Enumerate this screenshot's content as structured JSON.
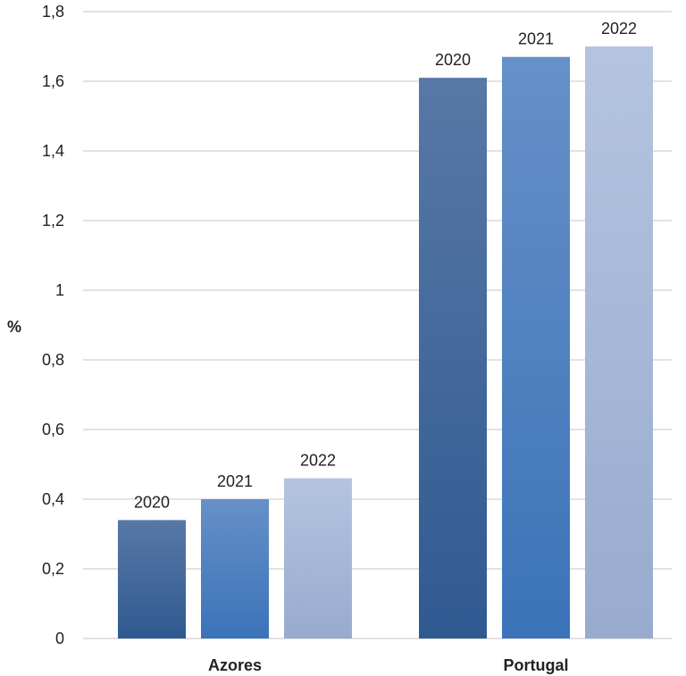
{
  "chart_data": {
    "type": "bar",
    "categories": [
      "Azores",
      "Portugal"
    ],
    "series": [
      {
        "label": "2020",
        "values": [
          0.34,
          1.61
        ]
      },
      {
        "label": "2021",
        "values": [
          0.4,
          1.67
        ]
      },
      {
        "label": "2022",
        "values": [
          0.46,
          1.7
        ]
      }
    ],
    "ylabel": "%",
    "ylim": [
      0,
      1.8
    ],
    "yticks": [
      0,
      0.2,
      0.4,
      0.6,
      0.8,
      1.0,
      1.2,
      1.4,
      1.6,
      1.8
    ],
    "ytick_labels": [
      "0",
      "0,2",
      "0,4",
      "0,6",
      "0,8",
      "1",
      "1,2",
      "1,4",
      "1,6",
      "1,8"
    ],
    "grid": true,
    "legend": "none",
    "colors": {
      "2020": [
        "#5878a6",
        "#2f5a91"
      ],
      "2021": [
        "#6690c8",
        "#3b73b8"
      ],
      "2022": [
        "#b4c4e0",
        "#98abce"
      ]
    }
  }
}
